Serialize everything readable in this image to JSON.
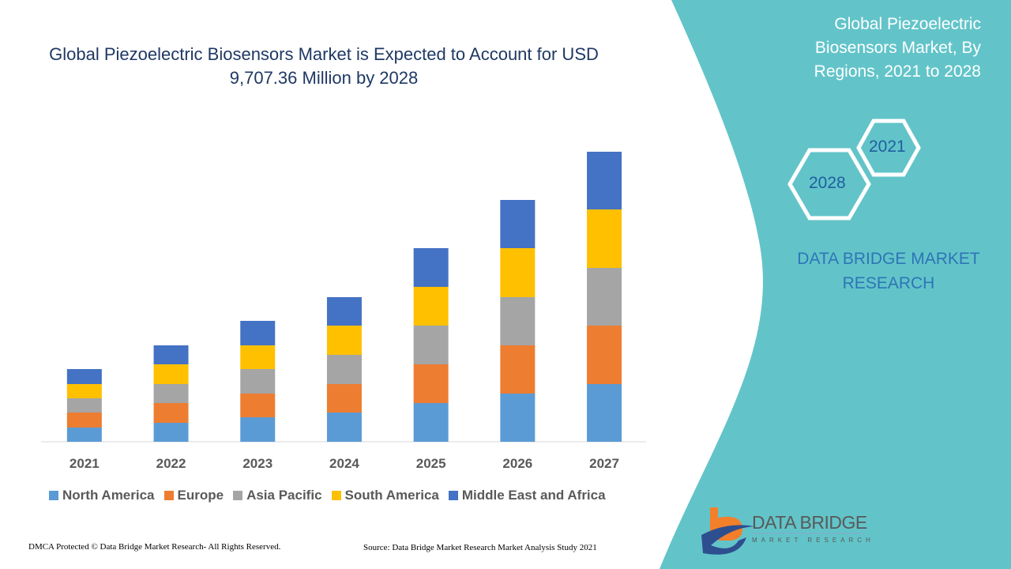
{
  "title": "Global Piezoelectric Biosensors Market is Expected to Account for USD 9,707.36 Million by 2028",
  "side_panel": {
    "title": "Global Piezoelectric Biosensors Market, By Regions, 2021 to 2028",
    "hex_years": [
      "2021",
      "2028"
    ],
    "brand": "DATA BRIDGE MARKET RESEARCH",
    "logo_text": "DATA BRIDGE",
    "logo_subtext": "MARKET RESEARCH",
    "color": "#62c4c9"
  },
  "footer": {
    "left": "DMCA Protected © Data Bridge Market Research- All Rights Reserved.",
    "right": "Source: Data Bridge Market Research Market Analysis Study 2021"
  },
  "chart_data": {
    "type": "bar",
    "stacked": true,
    "title": "Global Piezoelectric Biosensors Market is Expected to Account for USD 9,707.36 Million by 2028",
    "categories": [
      "2021",
      "2022",
      "2023",
      "2024",
      "2025",
      "2026",
      "2027"
    ],
    "y_axis_shown": false,
    "grid": false,
    "legend_position": "bottom",
    "series": [
      {
        "name": "North America",
        "color": "#5b9bd5",
        "values": [
          18,
          24,
          31,
          37,
          49,
          61,
          73
        ]
      },
      {
        "name": "Europe",
        "color": "#ed7d31",
        "values": [
          19,
          25,
          30,
          36,
          49,
          61,
          74
        ]
      },
      {
        "name": "Asia Pacific",
        "color": "#a5a5a5",
        "values": [
          18,
          24,
          31,
          37,
          49,
          61,
          73
        ]
      },
      {
        "name": "South America",
        "color": "#ffc000",
        "values": [
          18,
          25,
          30,
          37,
          49,
          62,
          74
        ]
      },
      {
        "name": "Middle East and Africa",
        "color": "#4472c4",
        "values": [
          19,
          24,
          31,
          36,
          49,
          61,
          73
        ]
      }
    ]
  }
}
